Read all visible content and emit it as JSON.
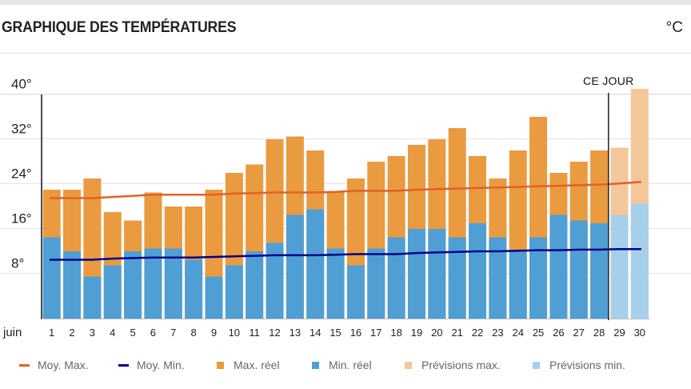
{
  "header": {
    "title": "GRAPHIQUE DES TEMPÉRATURES",
    "unit": "°C"
  },
  "colors": {
    "avg_max": "#e0622a",
    "avg_min": "#00008b",
    "max_real": "#ea9a3f",
    "min_real": "#4f9fd5",
    "forecast_max": "#f3c79a",
    "forecast_min": "#a6cfea",
    "today_line": "#222222",
    "grid": "#e2e2e2"
  },
  "chart_data": {
    "type": "bar",
    "title": "GRAPHIQUE DES TEMPÉRATURES",
    "unit": "°C",
    "xlabel": "juin",
    "ylabel": "",
    "categories": [
      "1",
      "2",
      "3",
      "4",
      "5",
      "6",
      "7",
      "8",
      "9",
      "10",
      "11",
      "12",
      "13",
      "14",
      "15",
      "16",
      "17",
      "18",
      "19",
      "20",
      "21",
      "22",
      "23",
      "24",
      "25",
      "26",
      "27",
      "28",
      "29",
      "30"
    ],
    "ylim": [
      0,
      40
    ],
    "yticks": [
      8,
      16,
      24,
      32,
      40
    ],
    "ytick_labels": [
      "8°",
      "16°",
      "24°",
      "32°",
      "40°"
    ],
    "grid": true,
    "legend_position": "bottom",
    "today_index": 28,
    "today_label": "CE JOUR",
    "series": [
      {
        "name": "Max. réel",
        "kind": "bar",
        "values": [
          23,
          23,
          25,
          19,
          17.5,
          22.5,
          20,
          20,
          23,
          26,
          27.5,
          32,
          32.5,
          30,
          22.5,
          25,
          28,
          29,
          31,
          32,
          34,
          29,
          25,
          30,
          36,
          26,
          28,
          30,
          null,
          null
        ]
      },
      {
        "name": "Min. réel",
        "kind": "bar",
        "values": [
          14.5,
          12,
          7.5,
          9.5,
          12,
          12.5,
          12.5,
          10.5,
          7.5,
          9.5,
          12,
          13.5,
          18.5,
          19.5,
          12.5,
          9.5,
          12.5,
          14.5,
          16,
          16,
          14.5,
          17,
          14.5,
          12,
          14.5,
          18.5,
          17.5,
          17,
          null,
          null
        ]
      },
      {
        "name": "Prévisions max.",
        "kind": "bar",
        "values": [
          null,
          null,
          null,
          null,
          null,
          null,
          null,
          null,
          null,
          null,
          null,
          null,
          null,
          null,
          null,
          null,
          null,
          null,
          null,
          null,
          null,
          null,
          null,
          null,
          null,
          null,
          null,
          null,
          30.5,
          41
        ]
      },
      {
        "name": "Prévisions min.",
        "kind": "bar",
        "values": [
          null,
          null,
          null,
          null,
          null,
          null,
          null,
          null,
          null,
          null,
          null,
          null,
          null,
          null,
          null,
          null,
          null,
          null,
          null,
          null,
          null,
          null,
          null,
          null,
          null,
          null,
          null,
          null,
          18.5,
          20.5
        ]
      },
      {
        "name": "Moy. Max.",
        "kind": "line",
        "values": [
          21.5,
          21.5,
          21.5,
          21.7,
          21.9,
          22.1,
          22.1,
          22.1,
          22.1,
          22.3,
          22.4,
          22.5,
          22.5,
          22.5,
          22.6,
          22.8,
          22.8,
          22.8,
          23.0,
          23.1,
          23.2,
          23.3,
          23.4,
          23.5,
          23.6,
          23.7,
          23.8,
          23.9,
          24.1,
          24.4
        ]
      },
      {
        "name": "Moy. Min.",
        "kind": "line",
        "values": [
          10.5,
          10.5,
          10.5,
          10.7,
          10.8,
          10.9,
          10.9,
          10.9,
          11.0,
          11.1,
          11.2,
          11.3,
          11.3,
          11.3,
          11.4,
          11.5,
          11.5,
          11.5,
          11.7,
          11.8,
          11.9,
          12.0,
          12.0,
          12.1,
          12.2,
          12.2,
          12.3,
          12.3,
          12.4,
          12.4
        ]
      }
    ]
  },
  "legend": [
    {
      "label": "Moy. Max.",
      "shape": "line",
      "color": "#e0622a"
    },
    {
      "label": "Moy. Min.",
      "shape": "line",
      "color": "#00008b"
    },
    {
      "label": "Max. réel",
      "shape": "square",
      "color": "#ea9a3f"
    },
    {
      "label": "Min. réel",
      "shape": "square",
      "color": "#4f9fd5"
    },
    {
      "label": "Prévisions max.",
      "shape": "square",
      "color": "#f3c79a"
    },
    {
      "label": "Prévisions min.",
      "shape": "square",
      "color": "#a6cfea"
    }
  ]
}
